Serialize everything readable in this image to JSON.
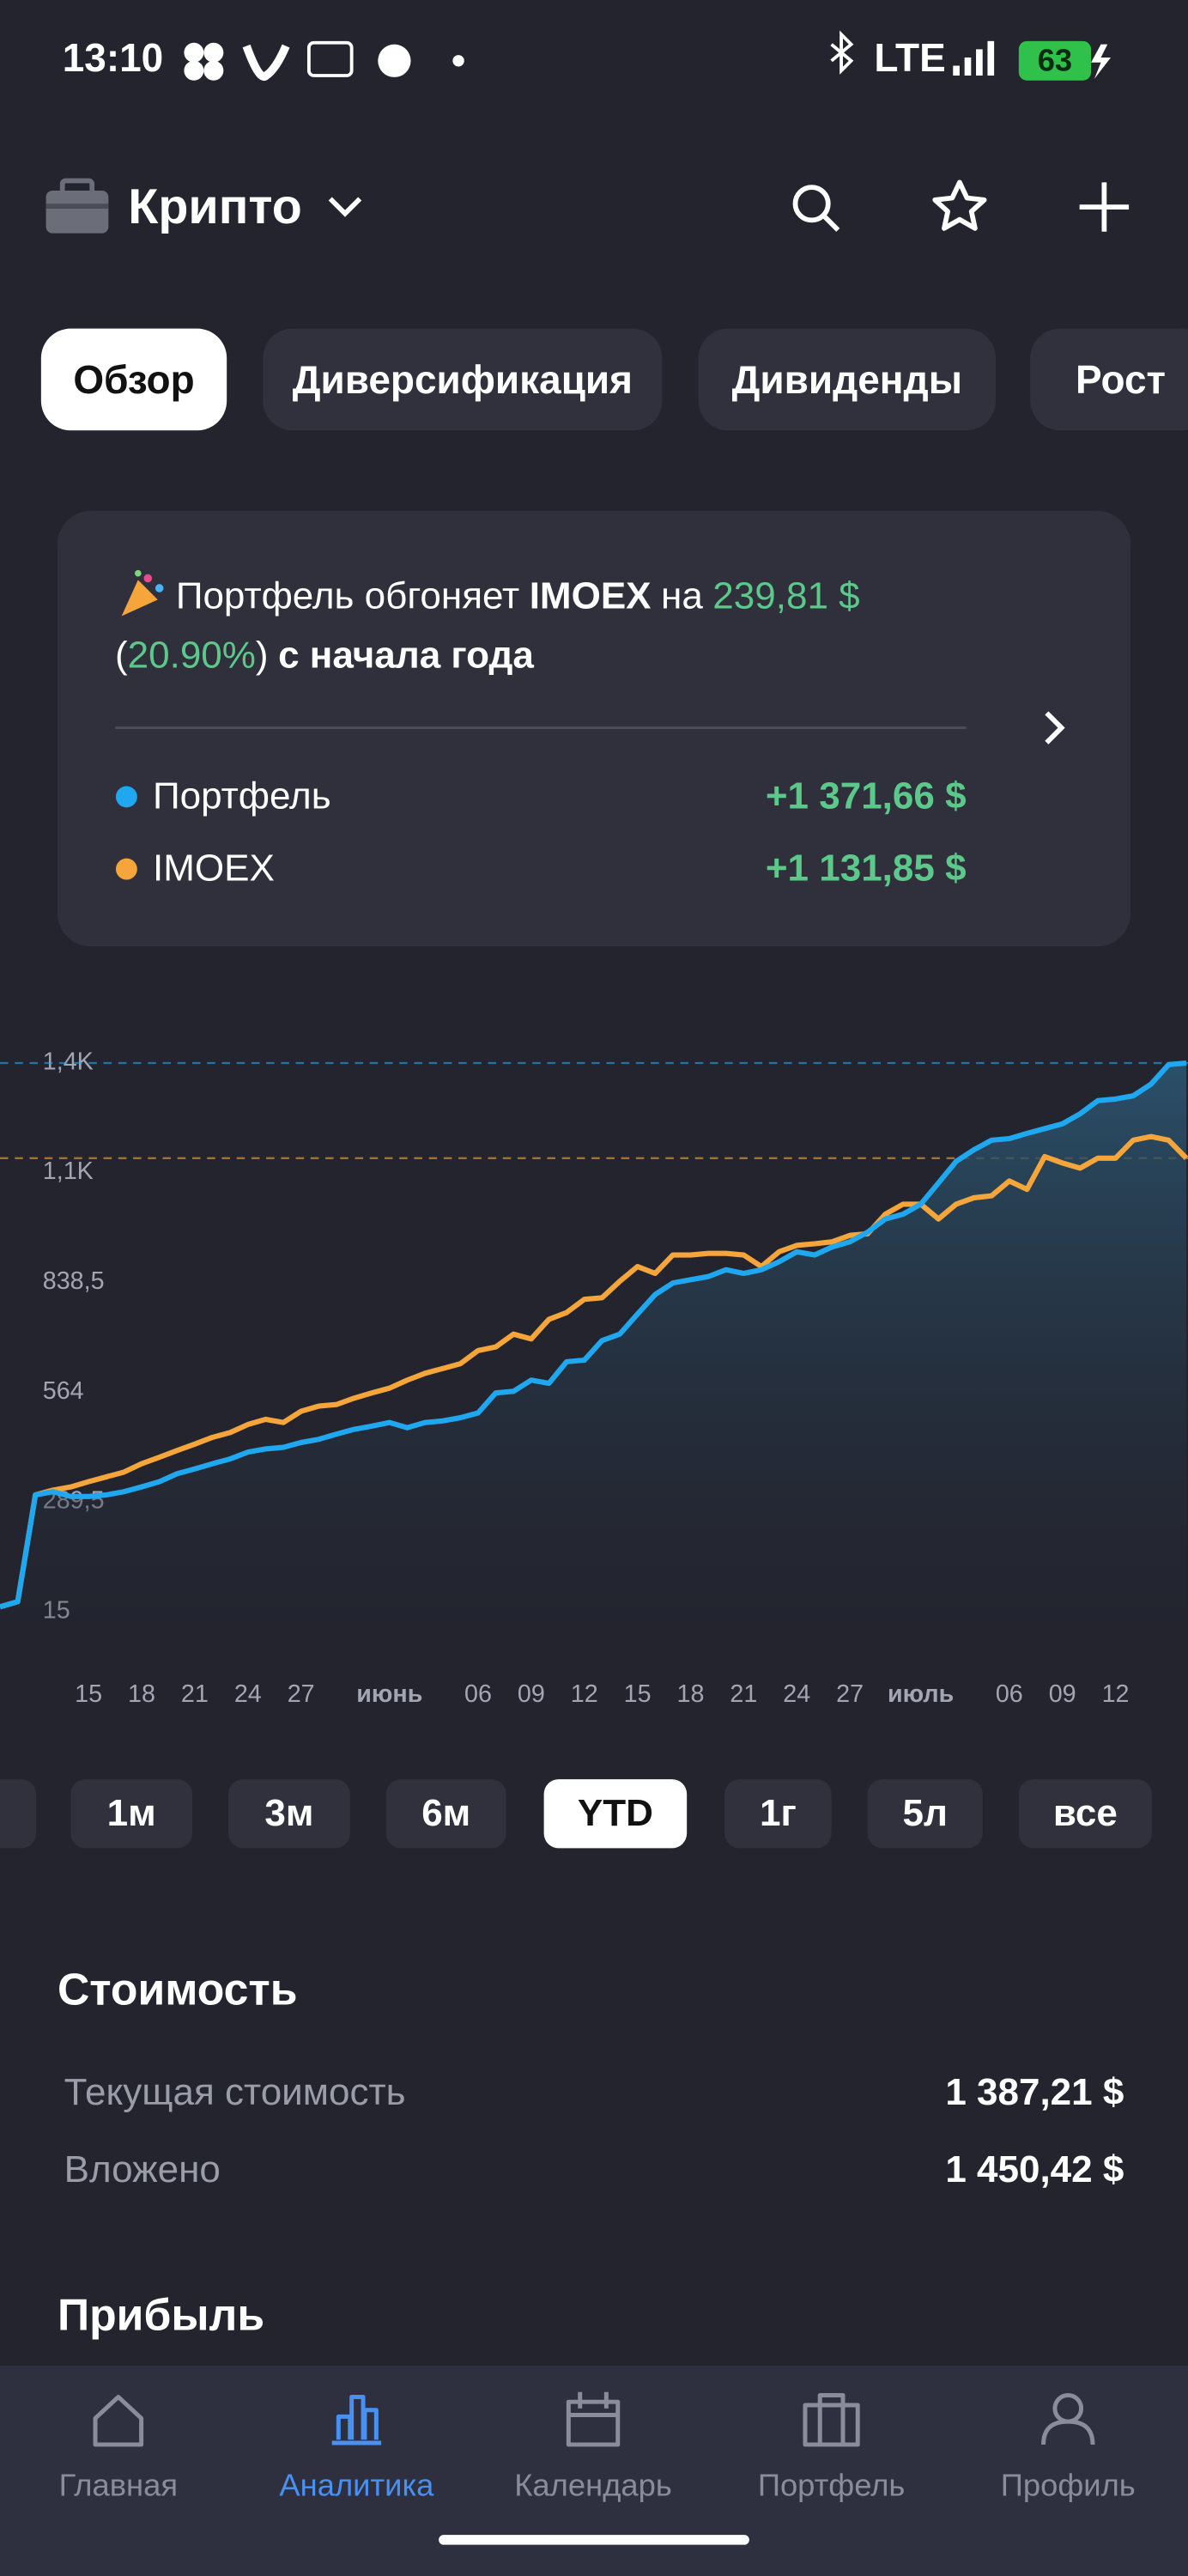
{
  "status_bar": {
    "time": "13:10",
    "network": "LTE",
    "battery": "63"
  },
  "header": {
    "title": "Крипто"
  },
  "tabs": {
    "items": [
      "Обзор",
      "Диверсификация",
      "Дивиденды",
      "Рост"
    ],
    "active": 0
  },
  "card": {
    "line1": [
      {
        "text": "Портфель обгоняет",
        "style": "normal"
      },
      {
        "text": "IMOEX",
        "style": "bold"
      },
      {
        "text": "на",
        "style": "normal"
      },
      {
        "text": "239,81 $",
        "style": "green"
      }
    ],
    "line2": [
      {
        "text": "(",
        "style": "normal"
      },
      {
        "text": "20.90%",
        "style": "green"
      },
      {
        "text": ")",
        "style": "normal"
      },
      {
        "text": "с начала года",
        "style": "bold"
      }
    ],
    "rows": [
      {
        "value": "+1 371,66 $"
      },
      {
        "value": "+1 131,85 $"
      }
    ]
  },
  "chart_data": {
    "type": "line",
    "categories": [
      null,
      null,
      null,
      null,
      null,
      "15",
      null,
      null,
      "18",
      null,
      null,
      "21",
      null,
      null,
      "24",
      null,
      null,
      "27",
      null,
      null,
      null,
      null,
      "июнь",
      null,
      null,
      null,
      null,
      "06",
      null,
      null,
      "09",
      null,
      null,
      "12",
      null,
      null,
      "15",
      null,
      null,
      "18",
      null,
      null,
      "21",
      null,
      null,
      "24",
      null,
      null,
      "27",
      null,
      null,
      null,
      "июль",
      null,
      null,
      null,
      null,
      "06",
      null,
      null,
      "09",
      null,
      null,
      "12",
      null,
      null,
      null,
      null
    ],
    "series": [
      {
        "name": "Портфель",
        "color": "#1fa8f0",
        "values": [
          27,
          40,
          307,
          315,
          303,
          303,
          307,
          315,
          327,
          340,
          360,
          372,
          385,
          397,
          414,
          422,
          426,
          438,
          446,
          459,
          471,
          479,
          488,
          475,
          488,
          492,
          500,
          512,
          562,
          566,
          594,
          586,
          640,
          644,
          693,
          709,
          759,
          808,
          837,
          845,
          853,
          870,
          861,
          870,
          890,
          915,
          907,
          927,
          940,
          964,
          997,
          1009,
          1034,
          1087,
          1141,
          1170,
          1194,
          1198,
          1211,
          1223,
          1235,
          1260,
          1293,
          1297,
          1305,
          1334,
          1383,
          1387
        ]
      },
      {
        "name": "IMOEX",
        "color": "#f5a53a",
        "values": [
          27,
          40,
          307,
          319,
          327,
          340,
          352,
          364,
          385,
          401,
          418,
          434,
          451,
          463,
          483,
          496,
          488,
          516,
          529,
          533,
          549,
          562,
          574,
          594,
          611,
          623,
          635,
          668,
          677,
          709,
          697,
          746,
          763,
          796,
          800,
          841,
          878,
          861,
          907,
          907,
          911,
          911,
          907,
          878,
          915,
          931,
          935,
          940,
          956,
          960,
          1009,
          1034,
          1034,
          997,
          1034,
          1050,
          1055,
          1092,
          1071,
          1153,
          1137,
          1124,
          1149,
          1149,
          1194,
          1203,
          1194,
          1149
        ]
      }
    ],
    "ylim": [
      -63,
      1416
    ],
    "yticks": [
      15,
      {
        "value": 289.5,
        "label": "289,5"
      },
      564,
      {
        "value": 838.5,
        "label": "838,5"
      },
      {
        "value": 1113,
        "label": "1,1K"
      },
      {
        "value": 1387.5,
        "label": "1,4K"
      }
    ]
  },
  "periods": {
    "items": [
      "1м",
      "3м",
      "6м",
      "YTD",
      "1г",
      "5л",
      "все"
    ],
    "active": 3
  },
  "cost": {
    "title": "Стоимость",
    "rows": [
      {
        "label": "Текущая стоимость",
        "value": "1 387,21 $"
      },
      {
        "label": "Вложено",
        "value": "1 450,42 $"
      }
    ]
  },
  "profit": {
    "title": "Прибыль"
  },
  "nav": {
    "items": [
      "Главная",
      "Аналитика",
      "Календарь",
      "Портфель",
      "Профиль"
    ],
    "active": 1
  }
}
